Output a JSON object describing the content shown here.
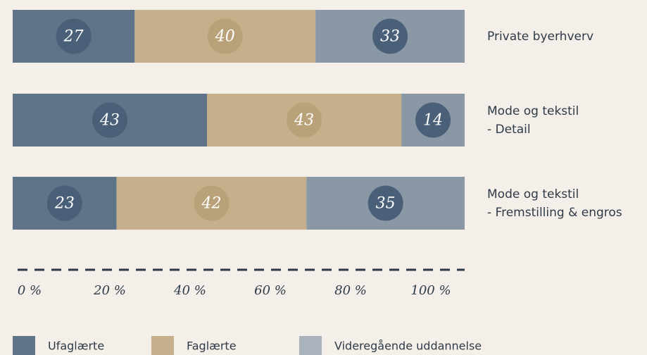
{
  "chart_data": {
    "type": "stacked-barh",
    "categories": [
      "Private byerhverv",
      "Mode og tekstil\n- Detail",
      "Mode og tekstil\n- Fremstilling & engros"
    ],
    "series": [
      {
        "name": "Ufaglærte",
        "color": "#5f7489",
        "values": [
          27,
          43,
          23
        ]
      },
      {
        "name": "Faglærte",
        "color": "#c6b08b",
        "values": [
          40,
          43,
          42
        ]
      },
      {
        "name": "Videregående uddannelse",
        "color": "#8a97a5",
        "values": [
          33,
          14,
          35
        ]
      }
    ],
    "xlim": [
      0,
      100
    ],
    "xticks": [
      {
        "value": 0,
        "label": "0 %"
      },
      {
        "value": 20,
        "label": "20 %"
      },
      {
        "value": 40,
        "label": "40 %"
      },
      {
        "value": 60,
        "label": "60 %"
      },
      {
        "value": 80,
        "label": "80 %"
      },
      {
        "value": 100,
        "label": "100 %"
      }
    ]
  }
}
